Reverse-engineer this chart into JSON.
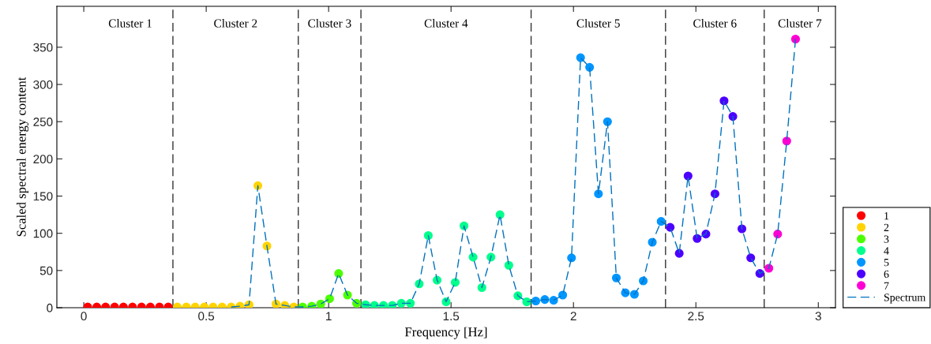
{
  "chart_data": {
    "type": "scatter",
    "xlabel": "Frequency [Hz]",
    "ylabel": "Scaled spectral energy content",
    "xlim": [
      -0.11,
      3.07
    ],
    "ylim": [
      0,
      405
    ],
    "xticks": [
      0,
      0.5,
      1,
      1.5,
      2,
      2.5,
      3
    ],
    "yticks": [
      0,
      50,
      100,
      150,
      200,
      250,
      300,
      350
    ],
    "grid": false,
    "legend": "bottom right",
    "marker": "circle",
    "series": [
      {
        "name": "1",
        "color": "#ff0000",
        "x": [
          0.016,
          0.053,
          0.089,
          0.126,
          0.162,
          0.199,
          0.236,
          0.272,
          0.309,
          0.345
        ],
        "values": [
          1,
          1,
          1,
          1,
          1,
          1,
          1,
          1,
          1,
          1
        ]
      },
      {
        "name": "2",
        "color": "#ffd400",
        "x": [
          0.382,
          0.419,
          0.455,
          0.492,
          0.528,
          0.565,
          0.602,
          0.638,
          0.675,
          0.711,
          0.748,
          0.785,
          0.821,
          0.858
        ],
        "values": [
          1,
          1,
          1,
          1,
          1,
          1,
          1,
          2,
          4,
          164,
          83,
          5,
          3,
          1
        ]
      },
      {
        "name": "3",
        "color": "#4cff00",
        "x": [
          0.894,
          0.931,
          0.968,
          1.004,
          1.041,
          1.077,
          1.114
        ],
        "values": [
          1,
          2,
          5,
          12,
          46,
          17,
          6
        ]
      },
      {
        "name": "4",
        "color": "#00ff8c",
        "x": [
          1.151,
          1.187,
          1.224,
          1.26,
          1.297,
          1.334,
          1.37,
          1.407,
          1.443,
          1.48,
          1.517,
          1.553,
          1.59,
          1.626,
          1.663,
          1.7,
          1.736,
          1.773,
          1.809
        ],
        "values": [
          4,
          3,
          3,
          3,
          6,
          6,
          32,
          97,
          37,
          8,
          34,
          110,
          68,
          27,
          68,
          125,
          57,
          16,
          8
        ]
      },
      {
        "name": "5",
        "color": "#0096ff",
        "x": [
          1.846,
          1.883,
          1.919,
          1.956,
          1.992,
          2.029,
          2.066,
          2.102,
          2.139,
          2.175,
          2.212,
          2.249,
          2.285,
          2.322,
          2.358
        ],
        "values": [
          9,
          11,
          10,
          17,
          67,
          336,
          323,
          153,
          250,
          40,
          20,
          18,
          36,
          88,
          116
        ]
      },
      {
        "name": "6",
        "color": "#4c00ff",
        "x": [
          2.395,
          2.432,
          2.468,
          2.505,
          2.541,
          2.578,
          2.615,
          2.651,
          2.688,
          2.724,
          2.761
        ],
        "values": [
          108,
          73,
          177,
          93,
          99,
          153,
          278,
          257,
          106,
          67,
          46
        ]
      },
      {
        "name": "7",
        "color": "#ff00d4",
        "x": [
          2.798,
          2.834,
          2.871,
          2.907
        ],
        "values": [
          53,
          99,
          224,
          361
        ]
      },
      {
        "name": "Spectrum",
        "type": "line",
        "color": "#0072bd",
        "line_style": "dashed",
        "marker": "none",
        "x": [
          0.602,
          0.638,
          0.675,
          0.711,
          0.748,
          0.785,
          0.821,
          0.858,
          0.894,
          0.931,
          0.968,
          1.004,
          1.041,
          1.077,
          1.114,
          1.151,
          1.187,
          1.224,
          1.26,
          1.297,
          1.334,
          1.37,
          1.407,
          1.443,
          1.48,
          1.517,
          1.553,
          1.59,
          1.626,
          1.663,
          1.7,
          1.736,
          1.773,
          1.809,
          1.846,
          1.883,
          1.919,
          1.956,
          1.992,
          2.029,
          2.066,
          2.102,
          2.139,
          2.175,
          2.212,
          2.249,
          2.285,
          2.322,
          2.358,
          2.395,
          2.432,
          2.468,
          2.505,
          2.541,
          2.578,
          2.615,
          2.651,
          2.688,
          2.724,
          2.761,
          2.798,
          2.834,
          2.871,
          2.907
        ],
        "values": [
          1,
          2,
          4,
          164,
          83,
          5,
          3,
          1,
          1,
          2,
          5,
          12,
          46,
          17,
          6,
          4,
          3,
          3,
          3,
          6,
          6,
          32,
          97,
          37,
          8,
          34,
          110,
          68,
          27,
          68,
          125,
          57,
          16,
          8,
          9,
          11,
          10,
          17,
          67,
          336,
          323,
          153,
          250,
          40,
          20,
          18,
          36,
          88,
          116,
          108,
          73,
          177,
          93,
          99,
          153,
          278,
          257,
          106,
          67,
          46,
          53,
          99,
          224,
          361
        ]
      }
    ],
    "ref_lines": [
      {
        "axis": "x",
        "value": 0.364,
        "color": "#000000",
        "line_style": "dashed"
      },
      {
        "axis": "x",
        "value": 0.876,
        "color": "#000000",
        "line_style": "dashed"
      },
      {
        "axis": "x",
        "value": 1.132,
        "color": "#000000",
        "line_style": "dashed"
      },
      {
        "axis": "x",
        "value": 1.827,
        "color": "#000000",
        "line_style": "dashed"
      },
      {
        "axis": "x",
        "value": 2.376,
        "color": "#000000",
        "line_style": "dashed"
      },
      {
        "axis": "x",
        "value": 2.779,
        "color": "#000000",
        "line_style": "dashed"
      }
    ],
    "annotations": [
      "Cluster 1",
      "Cluster 2",
      "Cluster 3",
      "Cluster 4",
      "Cluster 5",
      "Cluster 6",
      "Cluster 7"
    ]
  }
}
